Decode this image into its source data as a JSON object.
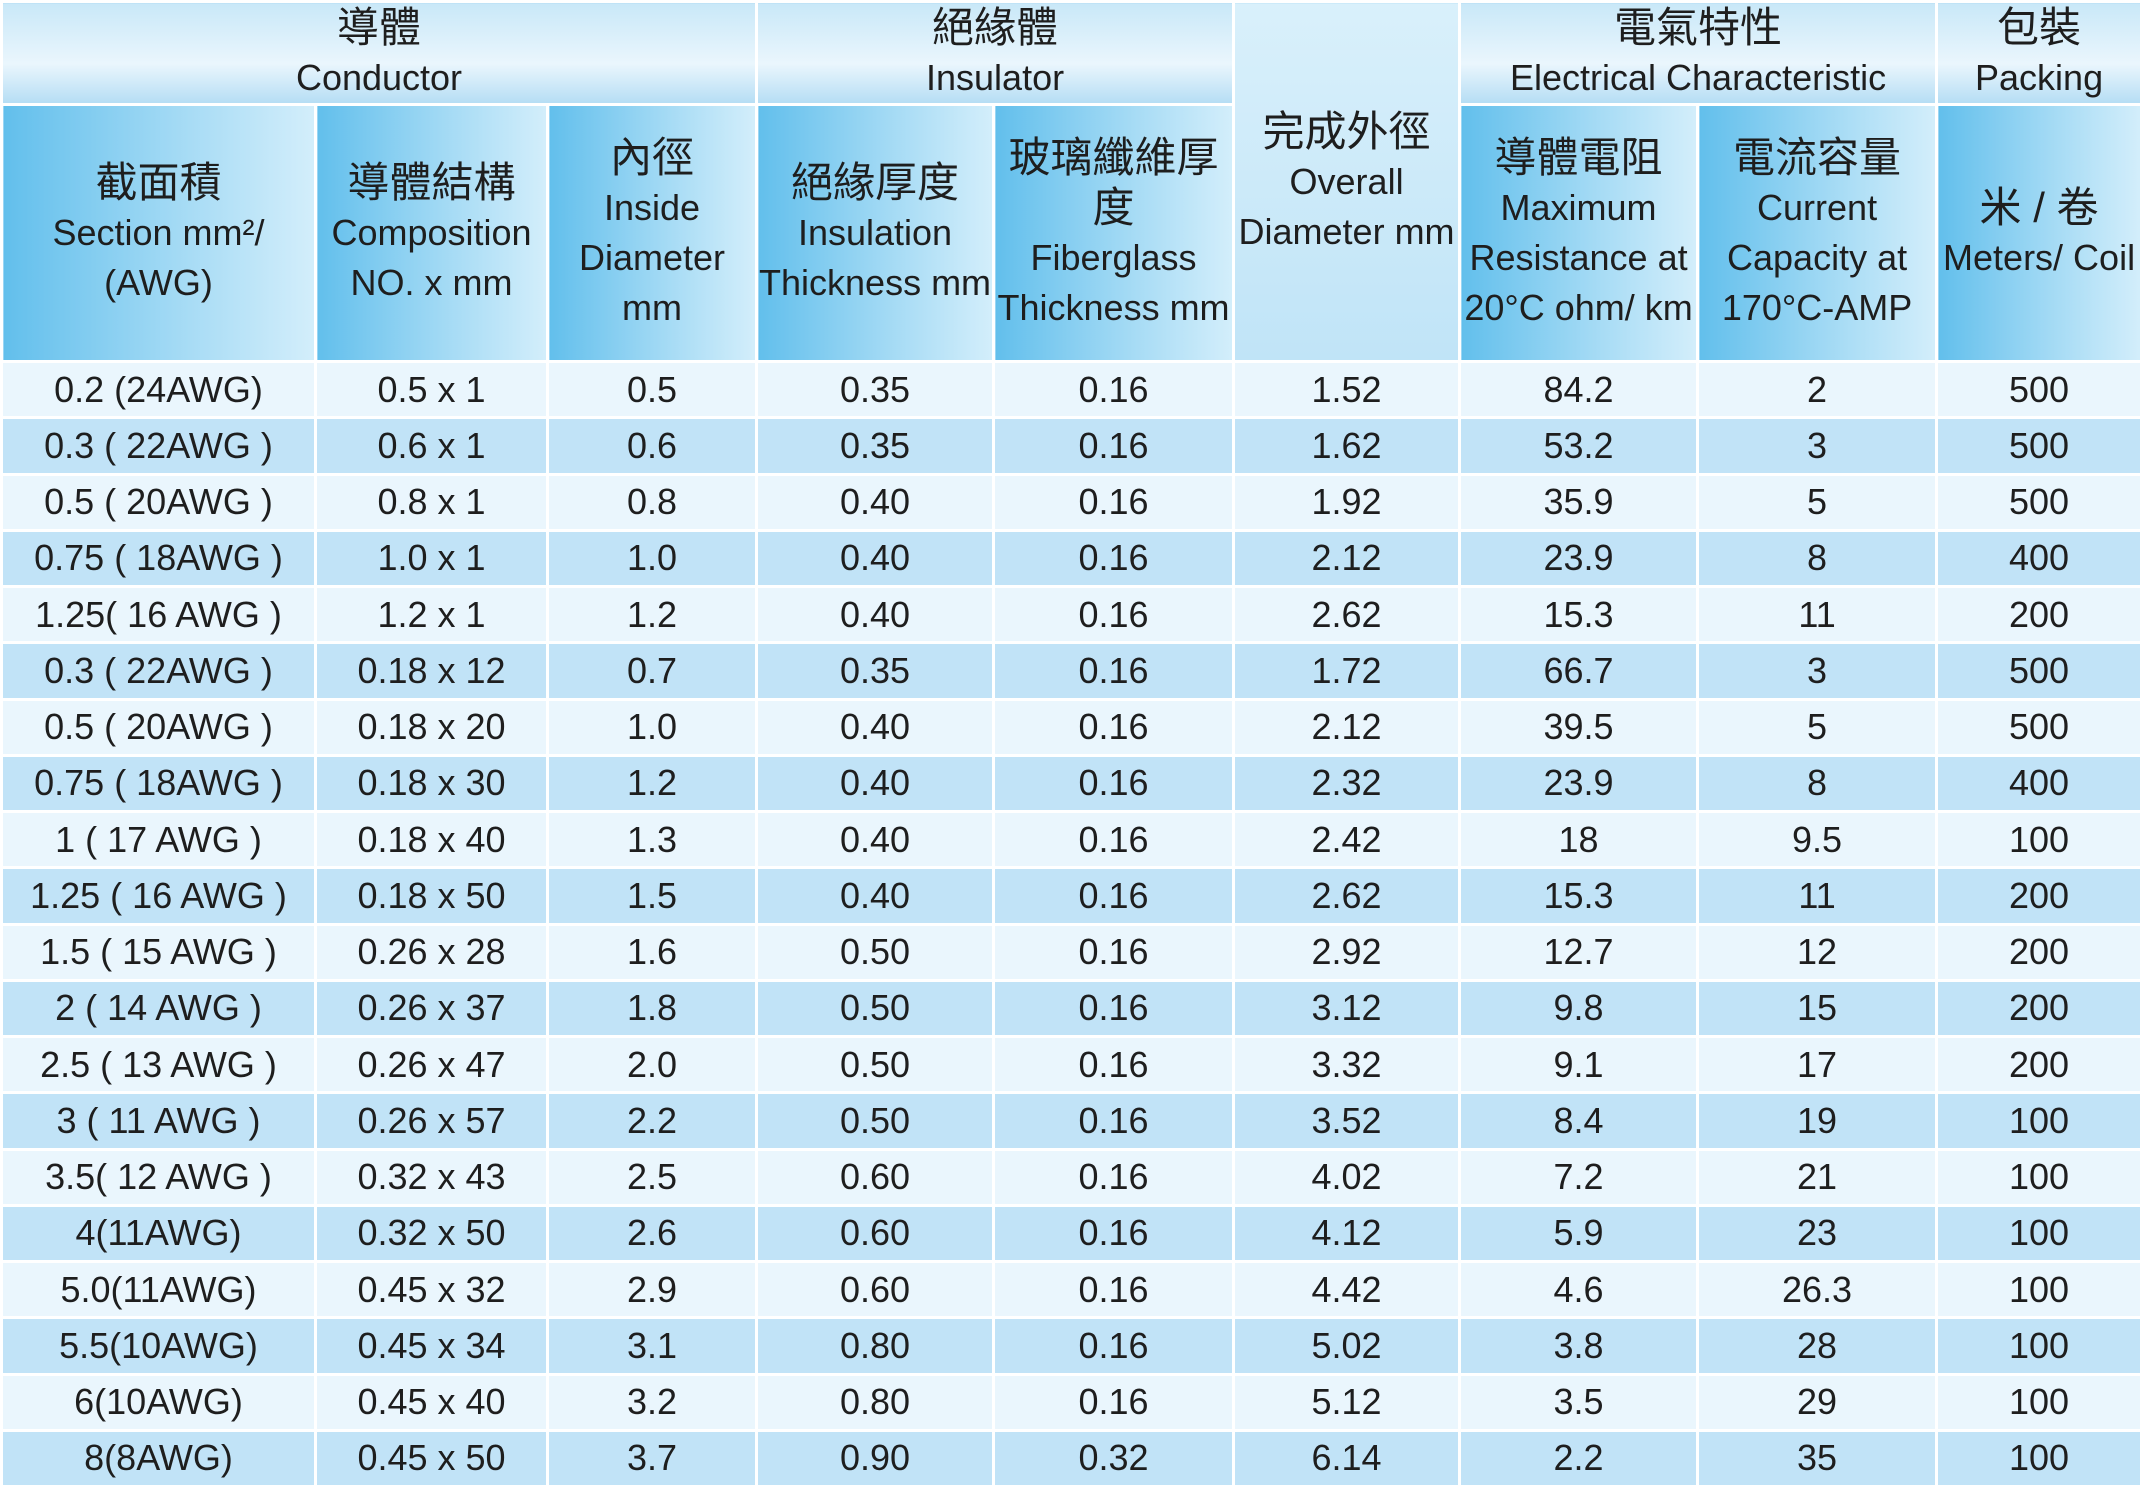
{
  "header": {
    "groups": [
      {
        "zh": "導體",
        "en": "Conductor"
      },
      {
        "zh": "絕緣體",
        "en": "Insulator"
      },
      {
        "zh": "完成外徑",
        "en": "Overall Diameter mm"
      },
      {
        "zh": "電氣特性",
        "en": "Electrical Characteristic"
      },
      {
        "zh": "包裝",
        "en": "Packing"
      }
    ],
    "columns": [
      {
        "zh": "截面積",
        "en": "Section mm²/ (AWG)"
      },
      {
        "zh": "導體結構",
        "en": "Composition NO. x mm"
      },
      {
        "zh": "內徑",
        "en": "Inside Diameter mm"
      },
      {
        "zh": "絕緣厚度",
        "en": "Insulation Thickness mm"
      },
      {
        "zh": "玻璃纖維厚度",
        "en": "Fiberglass Thickness mm"
      },
      {
        "zh": "導體電阻",
        "en": "Maximum Resistance at 20°C ohm/ km"
      },
      {
        "zh": "電流容量",
        "en": "Current Capacity at 170°C-AMP"
      },
      {
        "zh": "米 / 卷",
        "en": "Meters/ Coil"
      }
    ]
  },
  "table": {
    "rows": [
      [
        "0.2 (24AWG)",
        "0.5 x 1",
        "0.5",
        "0.35",
        "0.16",
        "1.52",
        "84.2",
        "2",
        "500"
      ],
      [
        "0.3 ( 22AWG )",
        "0.6 x 1",
        "0.6",
        "0.35",
        "0.16",
        "1.62",
        "53.2",
        "3",
        "500"
      ],
      [
        "0.5 ( 20AWG )",
        "0.8 x 1",
        "0.8",
        "0.40",
        "0.16",
        "1.92",
        "35.9",
        "5",
        "500"
      ],
      [
        "0.75 ( 18AWG )",
        "1.0 x 1",
        "1.0",
        "0.40",
        "0.16",
        "2.12",
        "23.9",
        "8",
        "400"
      ],
      [
        "1.25( 16 AWG )",
        "1.2 x 1",
        "1.2",
        "0.40",
        "0.16",
        "2.62",
        "15.3",
        "11",
        "200"
      ],
      [
        "0.3 ( 22AWG )",
        "0.18 x 12",
        "0.7",
        "0.35",
        "0.16",
        "1.72",
        "66.7",
        "3",
        "500"
      ],
      [
        "0.5 ( 20AWG )",
        "0.18 x 20",
        "1.0",
        "0.40",
        "0.16",
        "2.12",
        "39.5",
        "5",
        "500"
      ],
      [
        "0.75 ( 18AWG )",
        "0.18 x 30",
        "1.2",
        "0.40",
        "0.16",
        "2.32",
        "23.9",
        "8",
        "400"
      ],
      [
        "1 ( 17 AWG )",
        "0.18 x 40",
        "1.3",
        "0.40",
        "0.16",
        "2.42",
        "18",
        "9.5",
        "100"
      ],
      [
        "1.25 ( 16 AWG )",
        "0.18 x 50",
        "1.5",
        "0.40",
        "0.16",
        "2.62",
        "15.3",
        "11",
        "200"
      ],
      [
        "1.5 ( 15 AWG )",
        "0.26 x 28",
        "1.6",
        "0.50",
        "0.16",
        "2.92",
        "12.7",
        "12",
        "200"
      ],
      [
        "2 ( 14 AWG )",
        "0.26 x 37",
        "1.8",
        "0.50",
        "0.16",
        "3.12",
        "9.8",
        "15",
        "200"
      ],
      [
        "2.5 ( 13 AWG )",
        "0.26 x 47",
        "2.0",
        "0.50",
        "0.16",
        "3.32",
        "9.1",
        "17",
        "200"
      ],
      [
        "3 ( 11 AWG )",
        "0.26 x 57",
        "2.2",
        "0.50",
        "0.16",
        "3.52",
        "8.4",
        "19",
        "100"
      ],
      [
        "3.5( 12 AWG )",
        "0.32 x 43",
        "2.5",
        "0.60",
        "0.16",
        "4.02",
        "7.2",
        "21",
        "100"
      ],
      [
        "4(11AWG)",
        "0.32 x 50",
        "2.6",
        "0.60",
        "0.16",
        "4.12",
        "5.9",
        "23",
        "100"
      ],
      [
        "5.0(11AWG)",
        "0.45 x 32",
        "2.9",
        "0.60",
        "0.16",
        "4.42",
        "4.6",
        "26.3",
        "100"
      ],
      [
        "5.5(10AWG)",
        "0.45 x 34",
        "3.1",
        "0.80",
        "0.16",
        "5.02",
        "3.8",
        "28",
        "100"
      ],
      [
        "6(10AWG)",
        "0.45 x 40",
        "3.2",
        "0.80",
        "0.16",
        "5.12",
        "3.5",
        "29",
        "100"
      ],
      [
        "8(8AWG)",
        "0.45 x 50",
        "3.7",
        "0.90",
        "0.32",
        "6.14",
        "2.2",
        "35",
        "100"
      ]
    ]
  }
}
